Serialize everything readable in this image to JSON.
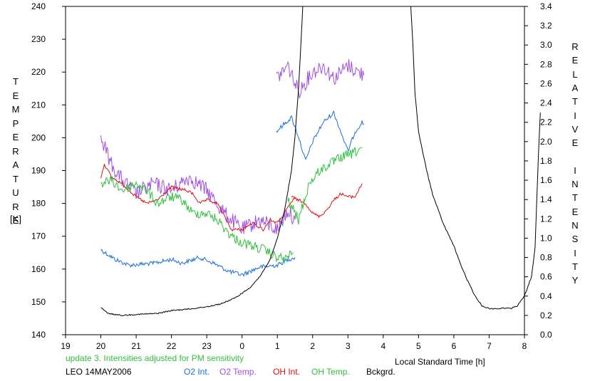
{
  "chart_data": {
    "type": "line",
    "y_left_label": "TEMPERATURE",
    "y_left_unit": "[K]",
    "y_right_label": "RELATIVE INTENSITY",
    "xlabel": "Local Standard Time [h]",
    "x_ticks": [
      "19",
      "20",
      "21",
      "22",
      "23",
      "0",
      "1",
      "2",
      "3",
      "4",
      "5",
      "6",
      "7",
      "8"
    ],
    "x_range_hours": [
      19,
      32
    ],
    "y_left_range": [
      140,
      240
    ],
    "y_left_ticks": [
      140,
      150,
      160,
      170,
      180,
      190,
      200,
      210,
      220,
      230,
      240
    ],
    "y_right_range": [
      0.0,
      3.4
    ],
    "y_right_ticks": [
      "0.0",
      "0.2",
      "0.4",
      "0.6",
      "0.8",
      "1.0",
      "1.2",
      "1.4",
      "1.6",
      "1.8",
      "2.0",
      "2.2",
      "2.4",
      "2.6",
      "2.8",
      "3.0",
      "3.2",
      "3.4"
    ],
    "series": [
      {
        "name": "O2 Int.",
        "color": "#1a6fd8",
        "axis": "right",
        "evening": [
          [
            20.0,
            0.88
          ],
          [
            20.4,
            0.78
          ],
          [
            20.8,
            0.72
          ],
          [
            21.5,
            0.74
          ],
          [
            22.0,
            0.78
          ],
          [
            22.3,
            0.74
          ],
          [
            22.8,
            0.8
          ],
          [
            23.2,
            0.74
          ],
          [
            23.6,
            0.66
          ],
          [
            24.0,
            0.62
          ],
          [
            24.5,
            0.7
          ],
          [
            25.0,
            0.72
          ],
          [
            25.3,
            0.78
          ],
          [
            25.5,
            0.8
          ]
        ],
        "morning": [
          [
            24.97,
            2.1
          ],
          [
            25.1,
            2.15
          ],
          [
            25.4,
            2.25
          ],
          [
            25.6,
            2.05
          ],
          [
            25.8,
            1.8
          ],
          [
            26.0,
            2.0
          ],
          [
            26.3,
            2.2
          ],
          [
            26.6,
            2.3
          ],
          [
            26.8,
            2.1
          ],
          [
            27.0,
            1.9
          ],
          [
            27.2,
            2.1
          ],
          [
            27.4,
            2.2
          ],
          [
            27.45,
            2.18
          ]
        ]
      },
      {
        "name": "O2 Temp.",
        "color": "#a050e0",
        "axis": "left",
        "evening": [
          [
            20.0,
            200
          ],
          [
            20.3,
            192
          ],
          [
            20.6,
            187
          ],
          [
            21.0,
            183
          ],
          [
            21.5,
            186
          ],
          [
            22.0,
            184
          ],
          [
            22.5,
            188
          ],
          [
            23.0,
            184
          ],
          [
            23.5,
            177
          ],
          [
            24.0,
            172
          ],
          [
            24.5,
            175
          ],
          [
            25.0,
            172
          ],
          [
            25.3,
            178
          ],
          [
            25.5,
            175
          ]
        ],
        "morning": [
          [
            24.97,
            218
          ],
          [
            25.3,
            222
          ],
          [
            25.6,
            214
          ],
          [
            26.0,
            220
          ],
          [
            26.3,
            222
          ],
          [
            26.6,
            218
          ],
          [
            27.0,
            222
          ],
          [
            27.3,
            220
          ],
          [
            27.45,
            219
          ]
        ]
      },
      {
        "name": "OH Int.",
        "color": "#e01010",
        "axis": "left",
        "evening": [
          [
            20.0,
            188
          ],
          [
            20.1,
            192
          ],
          [
            20.3,
            188
          ],
          [
            20.6,
            186
          ],
          [
            21.0,
            182
          ],
          [
            21.3,
            180
          ],
          [
            21.6,
            181
          ],
          [
            22.0,
            185
          ],
          [
            22.4,
            184
          ],
          [
            22.6,
            183
          ],
          [
            22.8,
            180
          ],
          [
            23.0,
            181
          ],
          [
            23.3,
            180
          ],
          [
            23.5,
            176
          ],
          [
            23.7,
            172
          ],
          [
            24.0,
            172
          ],
          [
            24.3,
            174
          ],
          [
            24.6,
            172
          ],
          [
            24.8,
            175
          ],
          [
            25.0,
            174
          ],
          [
            25.2,
            177
          ],
          [
            25.5,
            182
          ]
        ],
        "morning": [
          [
            25.4,
            182
          ],
          [
            25.6,
            181
          ],
          [
            25.8,
            180
          ],
          [
            26.0,
            177
          ],
          [
            26.2,
            176
          ],
          [
            26.4,
            178
          ],
          [
            26.6,
            181
          ],
          [
            26.8,
            183
          ],
          [
            27.0,
            182
          ],
          [
            27.2,
            182
          ],
          [
            27.4,
            186
          ]
        ]
      },
      {
        "name": "OH Temp.",
        "color": "#30c040",
        "axis": "left",
        "evening": [
          [
            20.0,
            186
          ],
          [
            20.3,
            187
          ],
          [
            20.6,
            184
          ],
          [
            21.0,
            186
          ],
          [
            21.3,
            184
          ],
          [
            21.6,
            180
          ],
          [
            22.0,
            182
          ],
          [
            22.3,
            181
          ],
          [
            22.6,
            177
          ],
          [
            23.0,
            177
          ],
          [
            23.3,
            175
          ],
          [
            23.7,
            170
          ],
          [
            24.0,
            168
          ],
          [
            24.3,
            167
          ],
          [
            24.6,
            166
          ],
          [
            24.9,
            164
          ],
          [
            25.2,
            163
          ],
          [
            25.45,
            165
          ]
        ],
        "morning": [
          [
            25.3,
            181
          ],
          [
            25.6,
            175
          ],
          [
            25.9,
            186
          ],
          [
            26.2,
            190
          ],
          [
            26.5,
            192
          ],
          [
            26.8,
            194
          ],
          [
            27.1,
            195
          ],
          [
            27.4,
            197
          ]
        ]
      },
      {
        "name": "Bckgrd.",
        "color": "#000000",
        "axis": "right",
        "evening": [
          [
            20.0,
            0.28
          ],
          [
            20.2,
            0.22
          ],
          [
            20.6,
            0.2
          ],
          [
            21.0,
            0.21
          ],
          [
            21.6,
            0.22
          ],
          [
            22.0,
            0.25
          ],
          [
            22.6,
            0.27
          ],
          [
            23.0,
            0.29
          ],
          [
            23.4,
            0.32
          ],
          [
            23.8,
            0.38
          ],
          [
            24.2,
            0.48
          ],
          [
            24.5,
            0.6
          ],
          [
            24.8,
            0.78
          ],
          [
            25.0,
            1.0
          ],
          [
            25.2,
            1.28
          ],
          [
            25.4,
            1.7
          ],
          [
            25.5,
            2.05
          ],
          [
            25.6,
            2.55
          ],
          [
            25.68,
            3.1
          ],
          [
            25.72,
            3.4
          ]
        ],
        "morning": [
          [
            28.78,
            3.4
          ],
          [
            28.84,
            3.0
          ],
          [
            28.9,
            2.5
          ],
          [
            29.0,
            2.1
          ],
          [
            29.2,
            1.75
          ],
          [
            29.4,
            1.45
          ],
          [
            29.7,
            1.15
          ],
          [
            30.0,
            0.92
          ],
          [
            30.2,
            0.72
          ],
          [
            30.4,
            0.55
          ],
          [
            30.6,
            0.4
          ],
          [
            30.8,
            0.3
          ],
          [
            31.0,
            0.27
          ],
          [
            31.3,
            0.27
          ],
          [
            31.5,
            0.28
          ],
          [
            31.6,
            0.27
          ],
          [
            31.8,
            0.3
          ],
          [
            32.0,
            0.4
          ],
          [
            32.2,
            0.6
          ],
          [
            32.3,
            0.9
          ],
          [
            32.35,
            1.4
          ],
          [
            32.4,
            1.9
          ],
          [
            32.45,
            2.3
          ]
        ]
      }
    ]
  },
  "footer": {
    "note": "update 3. Intensities adjusted for PM sensitivity",
    "note_color": "#30c040",
    "station_date": "LEO 14MAY2006"
  }
}
